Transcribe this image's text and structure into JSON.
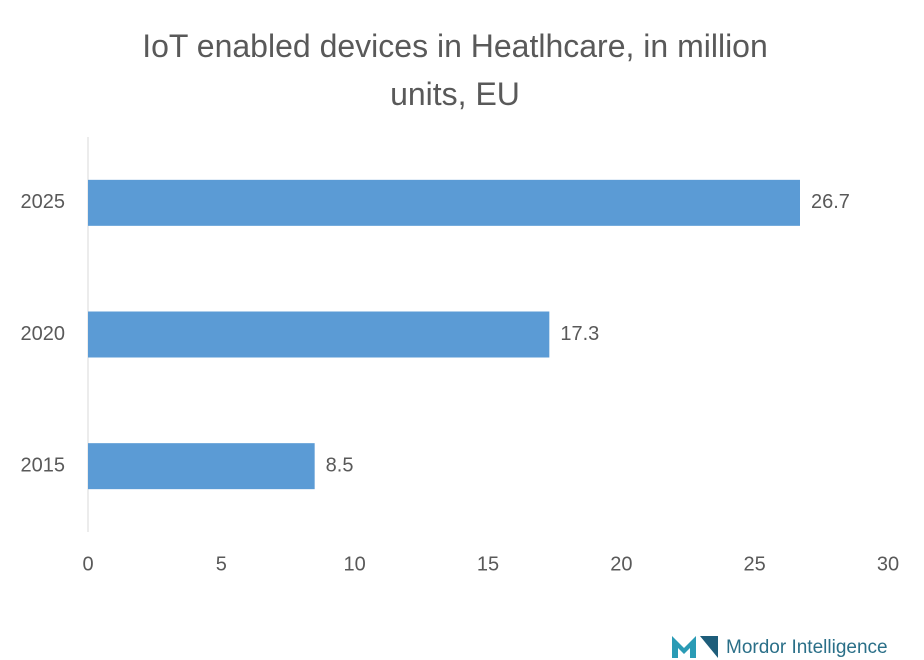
{
  "chart_data": {
    "type": "hbar",
    "title": "IoT enabled devices in Heatlhcare, in million units, EU",
    "categories": [
      "2015",
      "2020",
      "2025"
    ],
    "values": [
      8.5,
      17.3,
      26.7
    ],
    "color": "#5b9bd5",
    "xlim": [
      0,
      30
    ],
    "xticks": [
      0,
      5,
      10,
      15,
      20,
      25,
      30
    ],
    "grid": false,
    "watermark": "Mordor Intelligence"
  }
}
